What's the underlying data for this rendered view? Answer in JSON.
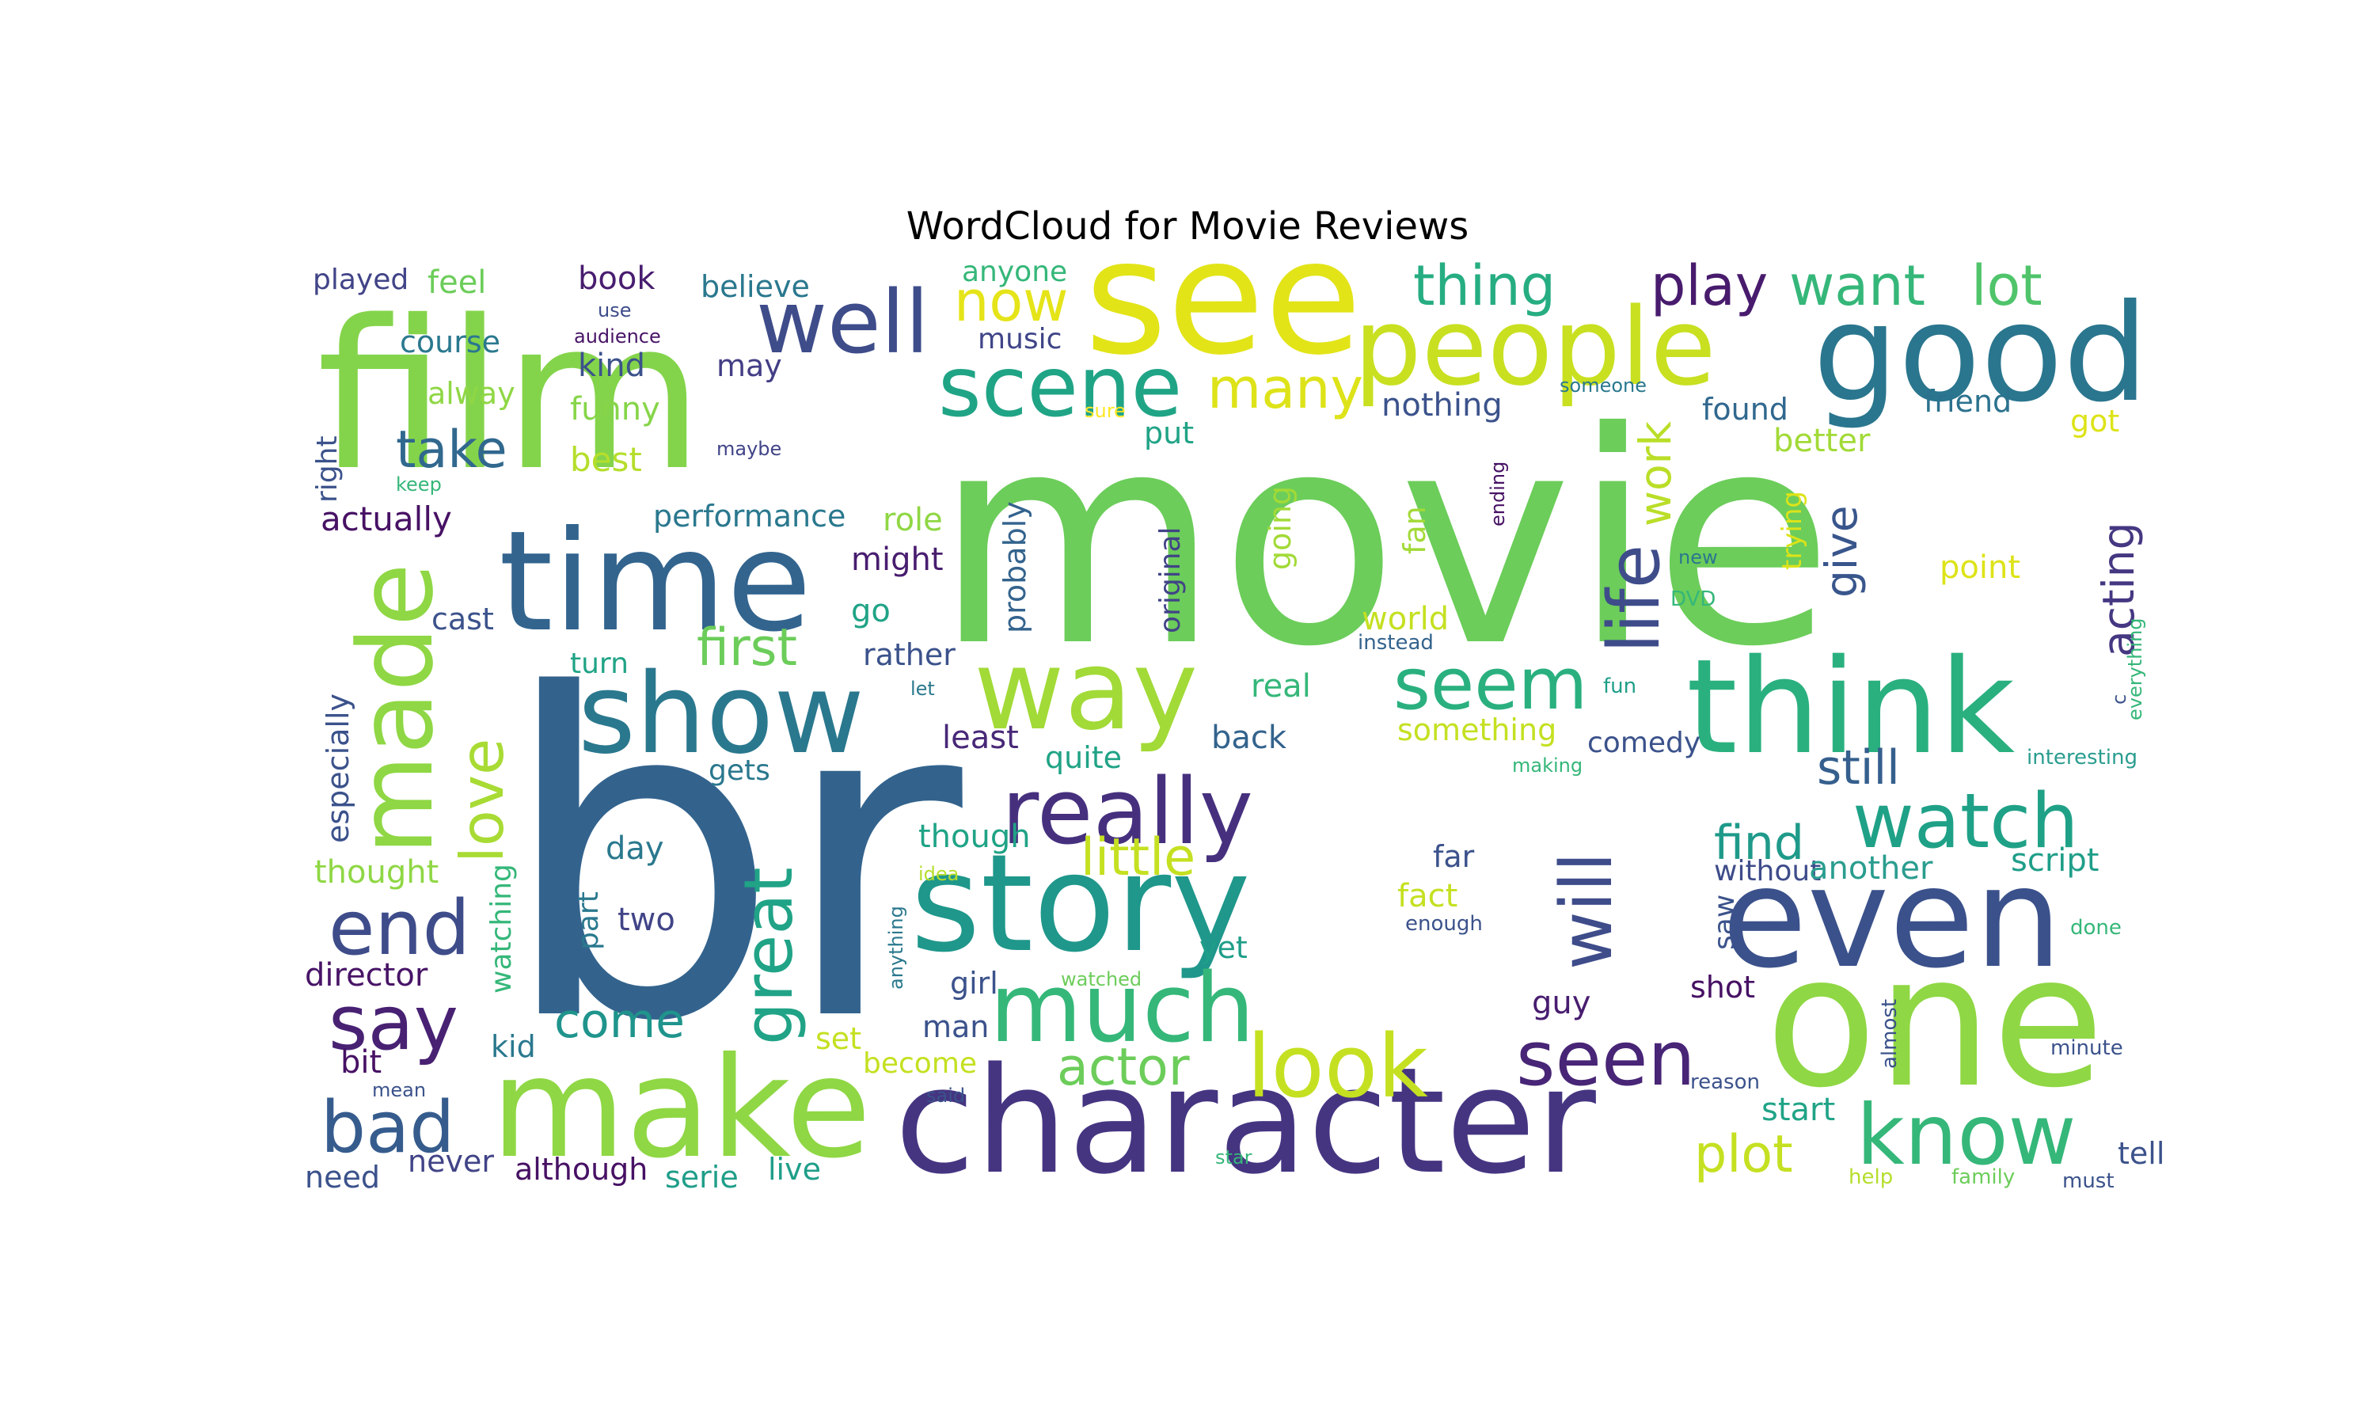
{
  "title": "WordCloud for Movie Reviews",
  "palette": [
    "#440154",
    "#482878",
    "#3e4a89",
    "#31688e",
    "#26828e",
    "#1f9e89",
    "#35b779",
    "#6ece58",
    "#b5de2b",
    "#fde725"
  ],
  "words": [
    {
      "text": "br",
      "color": "#33638d"
    },
    {
      "text": "movie",
      "color": "#6ccd5a"
    },
    {
      "text": "film",
      "color": "#84d44b"
    },
    {
      "text": "see",
      "color": "#e2e418"
    },
    {
      "text": "time",
      "color": "#32648e"
    },
    {
      "text": "one",
      "color": "#8fd744"
    },
    {
      "text": "character",
      "color": "#453581"
    },
    {
      "text": "make",
      "color": "#8fd744"
    },
    {
      "text": "story",
      "color": "#1f978b"
    },
    {
      "text": "even",
      "color": "#3b518b"
    },
    {
      "text": "think",
      "color": "#2ab07f"
    },
    {
      "text": "show",
      "color": "#2a788e"
    },
    {
      "text": "good",
      "color": "#2a768e"
    },
    {
      "text": "people",
      "color": "#c8e020"
    },
    {
      "text": "way",
      "color": "#a2da37"
    },
    {
      "text": "made",
      "color": "#8fd744"
    },
    {
      "text": "well",
      "color": "#3e4c8a"
    },
    {
      "text": "scene",
      "color": "#20a486"
    },
    {
      "text": "really",
      "color": "#46307e"
    },
    {
      "text": "much",
      "color": "#35b779"
    },
    {
      "text": "look",
      "color": "#c5e021"
    },
    {
      "text": "seen",
      "color": "#482576"
    },
    {
      "text": "know",
      "color": "#35b779"
    },
    {
      "text": "watch",
      "color": "#1fa187"
    },
    {
      "text": "life",
      "color": "#3e4c8a"
    },
    {
      "text": "will",
      "color": "#3e4c8a"
    },
    {
      "text": "seem",
      "color": "#2ab07f"
    },
    {
      "text": "end",
      "color": "#3e4c8a"
    },
    {
      "text": "say",
      "color": "#482173"
    },
    {
      "text": "bad",
      "color": "#365c8d"
    },
    {
      "text": "great",
      "color": "#20a386"
    },
    {
      "text": "love",
      "color": "#a8db34"
    },
    {
      "text": "thing",
      "color": "#26ad81"
    },
    {
      "text": "play",
      "color": "#481b6d"
    },
    {
      "text": "want",
      "color": "#35b779"
    },
    {
      "text": "lot",
      "color": "#50c46a"
    },
    {
      "text": "many",
      "color": "#dde318"
    },
    {
      "text": "now",
      "color": "#e5e419"
    },
    {
      "text": "take",
      "color": "#31688e"
    },
    {
      "text": "first",
      "color": "#6ccd5a"
    },
    {
      "text": "little",
      "color": "#c5e021"
    },
    {
      "text": "actor",
      "color": "#6ccd5a"
    },
    {
      "text": "plot",
      "color": "#c5e021"
    },
    {
      "text": "come",
      "color": "#1f948c"
    },
    {
      "text": "still",
      "color": "#355f8d"
    },
    {
      "text": "find",
      "color": "#1f9a8a"
    },
    {
      "text": "work",
      "color": "#bade28"
    },
    {
      "text": "give",
      "color": "#39568c"
    },
    {
      "text": "acting",
      "color": "#453781"
    },
    {
      "text": "played",
      "color": "#414487"
    },
    {
      "text": "feel",
      "color": "#6ccd5a"
    },
    {
      "text": "book",
      "color": "#481d6f"
    },
    {
      "text": "believe",
      "color": "#2a788e"
    },
    {
      "text": "anyone",
      "color": "#35b779"
    },
    {
      "text": "course",
      "color": "#2a788e"
    },
    {
      "text": "use",
      "color": "#3e4c8a"
    },
    {
      "text": "audience",
      "color": "#481467"
    },
    {
      "text": "kind",
      "color": "#3b528b"
    },
    {
      "text": "may",
      "color": "#433e85"
    },
    {
      "text": "music",
      "color": "#404588"
    },
    {
      "text": "alway",
      "color": "#8fd744"
    },
    {
      "text": "funny",
      "color": "#86d549"
    },
    {
      "text": "nothing",
      "color": "#3b528b"
    },
    {
      "text": "found",
      "color": "#31688e"
    },
    {
      "text": "friend",
      "color": "#2c728e"
    },
    {
      "text": "got",
      "color": "#dde318"
    },
    {
      "text": "better",
      "color": "#a2da37"
    },
    {
      "text": "sure",
      "color": "#fde725"
    },
    {
      "text": "someone",
      "color": "#2a788e"
    },
    {
      "text": "maybe",
      "color": "#414487"
    },
    {
      "text": "best",
      "color": "#b5de2b"
    },
    {
      "text": "right",
      "color": "#3b528b"
    },
    {
      "text": "keep",
      "color": "#35b779"
    },
    {
      "text": "put",
      "color": "#20a386"
    },
    {
      "text": "performance",
      "color": "#2a788e"
    },
    {
      "text": "actually",
      "color": "#471164"
    },
    {
      "text": "role",
      "color": "#8fd744"
    },
    {
      "text": "might",
      "color": "#481d6f"
    },
    {
      "text": "original",
      "color": "#414487"
    },
    {
      "text": "probably",
      "color": "#33638d"
    },
    {
      "text": "going",
      "color": "#a2da37"
    },
    {
      "text": "fan",
      "color": "#a2da37"
    },
    {
      "text": "ending",
      "color": "#471164"
    },
    {
      "text": "trying",
      "color": "#dde318"
    },
    {
      "text": "new",
      "color": "#2a788e"
    },
    {
      "text": "point",
      "color": "#dde318"
    },
    {
      "text": "DVD",
      "color": "#35b779"
    },
    {
      "text": "world",
      "color": "#c5e021"
    },
    {
      "text": "instead",
      "color": "#33638d"
    },
    {
      "text": "cast",
      "color": "#3b528b"
    },
    {
      "text": "go",
      "color": "#20a386"
    },
    {
      "text": "rather",
      "color": "#3b528b"
    },
    {
      "text": "turn",
      "color": "#20a386"
    },
    {
      "text": "let",
      "color": "#2a788e"
    },
    {
      "text": "real",
      "color": "#35b779"
    },
    {
      "text": "fun",
      "color": "#1f9e89"
    },
    {
      "text": "c",
      "color": "#3b528b"
    },
    {
      "text": "everything",
      "color": "#35b779"
    },
    {
      "text": "especially",
      "color": "#3b528b"
    },
    {
      "text": "least",
      "color": "#482878"
    },
    {
      "text": "quite",
      "color": "#20a386"
    },
    {
      "text": "back",
      "color": "#33638d"
    },
    {
      "text": "something",
      "color": "#c5e021"
    },
    {
      "text": "comedy",
      "color": "#3b528b"
    },
    {
      "text": "making",
      "color": "#35b779"
    },
    {
      "text": "interesting",
      "color": "#2a9d8f"
    },
    {
      "text": "gets",
      "color": "#2a788e"
    },
    {
      "text": "though",
      "color": "#20a386"
    },
    {
      "text": "watching",
      "color": "#35b779"
    },
    {
      "text": "day",
      "color": "#2a788e"
    },
    {
      "text": "thought",
      "color": "#8fd744"
    },
    {
      "text": "idea",
      "color": "#b5de2b"
    },
    {
      "text": "far",
      "color": "#3b528b"
    },
    {
      "text": "without",
      "color": "#3e4c8a"
    },
    {
      "text": "another",
      "color": "#2a9d8f"
    },
    {
      "text": "script",
      "color": "#1f9e89"
    },
    {
      "text": "part",
      "color": "#2a788e"
    },
    {
      "text": "two",
      "color": "#414487"
    },
    {
      "text": "anything",
      "color": "#2a788e"
    },
    {
      "text": "fact",
      "color": "#c5e021"
    },
    {
      "text": "enough",
      "color": "#3b528b"
    },
    {
      "text": "saw",
      "color": "#3b528b"
    },
    {
      "text": "done",
      "color": "#35b779"
    },
    {
      "text": "director",
      "color": "#481467"
    },
    {
      "text": "girl",
      "color": "#3b528b"
    },
    {
      "text": "watched",
      "color": "#6ccd5a"
    },
    {
      "text": "yet",
      "color": "#1f9e89"
    },
    {
      "text": "shot",
      "color": "#471164"
    },
    {
      "text": "guy",
      "color": "#481d6f"
    },
    {
      "text": "almost",
      "color": "#3b528b"
    },
    {
      "text": "man",
      "color": "#3b528b"
    },
    {
      "text": "kid",
      "color": "#2a788e"
    },
    {
      "text": "set",
      "color": "#c5e021"
    },
    {
      "text": "bit",
      "color": "#471164"
    },
    {
      "text": "become",
      "color": "#c5e021"
    },
    {
      "text": "minute",
      "color": "#3b528b"
    },
    {
      "text": "mean",
      "color": "#3b528b"
    },
    {
      "text": "reason",
      "color": "#3b528b"
    },
    {
      "text": "start",
      "color": "#20a386"
    },
    {
      "text": "said",
      "color": "#3b528b"
    },
    {
      "text": "never",
      "color": "#414487"
    },
    {
      "text": "although",
      "color": "#471164"
    },
    {
      "text": "star",
      "color": "#35b779"
    },
    {
      "text": "tell",
      "color": "#3b528b"
    },
    {
      "text": "need",
      "color": "#3b528b"
    },
    {
      "text": "serie",
      "color": "#1f9e89"
    },
    {
      "text": "live",
      "color": "#1f9e89"
    },
    {
      "text": "help",
      "color": "#b5de2b"
    },
    {
      "text": "family",
      "color": "#6ccd5a"
    },
    {
      "text": "must",
      "color": "#3b528b"
    }
  ]
}
